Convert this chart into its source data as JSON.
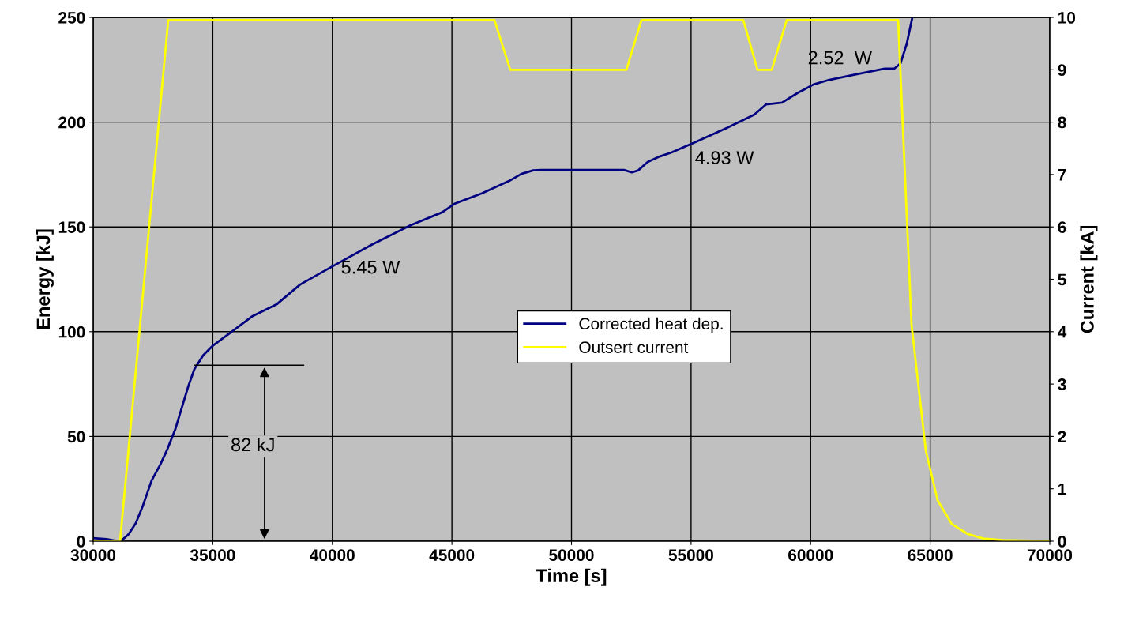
{
  "chart_data": {
    "type": "line",
    "xlabel": "Time [s]",
    "ylabel": "Energy [kJ]",
    "y2label": "Current [kA]",
    "xlim": [
      30000,
      70000
    ],
    "xticks": [
      30000,
      35000,
      40000,
      45000,
      50000,
      55000,
      60000,
      65000,
      70000
    ],
    "ylim": [
      0,
      250
    ],
    "yticks": [
      0,
      50,
      100,
      150,
      200,
      250
    ],
    "y2lim": [
      0,
      10
    ],
    "y2ticks": [
      0,
      1,
      2,
      3,
      4,
      5,
      6,
      7,
      8,
      9,
      10
    ],
    "grid": true,
    "legend": "center",
    "marker": "none",
    "line_style": "solid",
    "series": [
      {
        "name": "Corrected heat dep.",
        "color": "#000080",
        "x": [
          30000,
          30560,
          31057,
          31156,
          31486,
          31784,
          32080,
          32444,
          32808,
          33105,
          33435,
          33766,
          33964,
          34228,
          34591,
          35020,
          35680,
          36672,
          37663,
          38654,
          39975,
          41627,
          43278,
          44600,
          45095,
          46251,
          47407,
          47903,
          48399,
          48729,
          52197,
          52527,
          52792,
          53188,
          53684,
          54180,
          55171,
          56492,
          57648,
          58143,
          58804,
          59464,
          60125,
          60786,
          61777,
          63098,
          63494,
          63758,
          64022,
          64253
        ],
        "values": [
          1.5,
          1,
          0,
          0,
          3.4,
          8.7,
          17,
          29,
          36.6,
          44,
          53.5,
          66,
          73.5,
          82,
          88.6,
          93.5,
          99,
          107.5,
          113,
          122.5,
          131,
          141.4,
          150.8,
          157,
          161,
          166,
          172,
          175.3,
          177,
          177.2,
          177.2,
          176,
          177,
          181,
          183.6,
          185.5,
          190.4,
          197.2,
          203.6,
          208.5,
          209.3,
          214,
          218,
          220.2,
          222.5,
          225.5,
          225.5,
          228,
          237.5,
          250
        ]
      },
      {
        "name": "Outsert current",
        "color": "#ffff00",
        "axis": "y2",
        "x": [
          30000,
          31123,
          33138,
          46780,
          47440,
          52296,
          52924,
          57185,
          57780,
          58374,
          59000,
          63660,
          64220,
          64816,
          65310,
          65900,
          66560,
          67220,
          68050,
          70000
        ],
        "values": [
          0,
          0,
          9.95,
          9.95,
          9.0,
          9.0,
          9.95,
          9.95,
          9.0,
          9.0,
          9.95,
          9.95,
          4.13,
          1.73,
          0.78,
          0.33,
          0.14,
          0.05,
          0.02,
          0
        ]
      }
    ],
    "annotations": [
      "5.45 W",
      "4.93 W",
      "2.52  W",
      "82 kJ"
    ]
  }
}
